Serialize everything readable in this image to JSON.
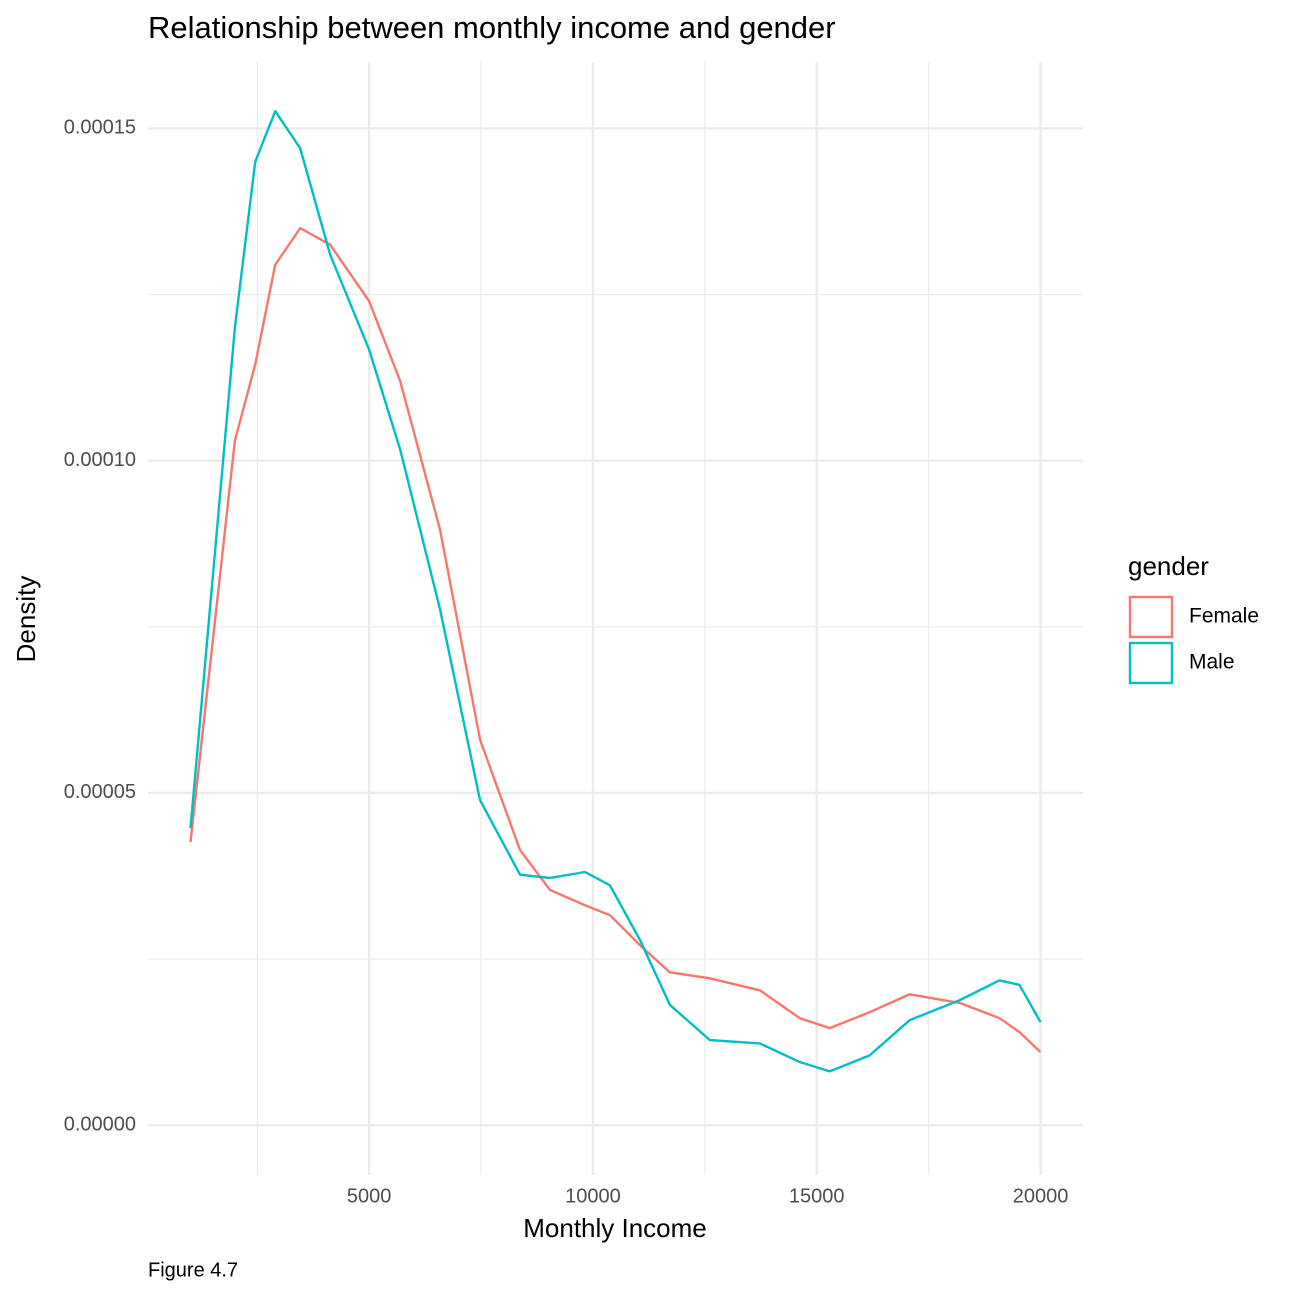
{
  "chart_data": {
    "type": "line",
    "title": "Relationship between monthly income and gender",
    "x_label": "Monthly Income",
    "y_label": "Density",
    "caption": "Figure 4.7",
    "legend_title": "gender",
    "legend_position": "right",
    "grid": true,
    "x": [
      1009,
      2000,
      2455,
      2902,
      3460,
      4129,
      5000,
      5692,
      6585,
      7478,
      8371,
      9040,
      9821,
      10379,
      11049,
      11719,
      12612,
      13728,
      14621,
      15290,
      16183,
      17076,
      18192,
      19085,
      19531,
      20000
    ],
    "series": [
      {
        "name": "Female",
        "color": "#F8766D",
        "values": [
          4.26e-05,
          0.000103,
          0.0001145,
          0.0001295,
          0.000135,
          0.0001325,
          0.000124,
          0.000112,
          8.96e-05,
          5.8e-05,
          4.14e-05,
          3.54e-05,
          3.31e-05,
          3.16e-05,
          2.71e-05,
          2.3e-05,
          2.21e-05,
          2.03e-05,
          1.61e-05,
          1.46e-05,
          1.7e-05,
          1.97e-05,
          1.84e-05,
          1.61e-05,
          1.4e-05,
          1.1e-05
        ]
      },
      {
        "name": "Male",
        "color": "#00BFC4",
        "values": [
          4.47e-05,
          0.00012,
          0.000145,
          0.0001526,
          0.000147,
          0.000131,
          0.0001167,
          0.0001017,
          7.76e-05,
          4.89e-05,
          3.77e-05,
          3.72e-05,
          3.81e-05,
          3.61e-05,
          2.79e-05,
          1.81e-05,
          1.28e-05,
          1.23e-05,
          9.5e-06,
          8.1e-06,
          1.05e-05,
          1.58e-05,
          1.88e-05,
          2.18e-05,
          2.11e-05,
          1.55e-05
        ]
      }
    ],
    "xlim": [
      59,
      20949
    ],
    "ylim": [
      -7.5e-06,
      0.00016
    ],
    "xticks": [
      5000,
      10000,
      15000,
      20000
    ],
    "x_minor_ticks": [
      2500,
      7500,
      12500,
      17500
    ],
    "yticks": [
      {
        "value": 0,
        "label": "0.00000"
      },
      {
        "value": 5e-05,
        "label": "0.00005"
      },
      {
        "value": 0.0001,
        "label": "0.00010"
      },
      {
        "value": 0.00015,
        "label": "0.00015"
      }
    ],
    "y_minor_ticks": [
      2.5e-05,
      7.5e-05,
      0.000125
    ]
  }
}
